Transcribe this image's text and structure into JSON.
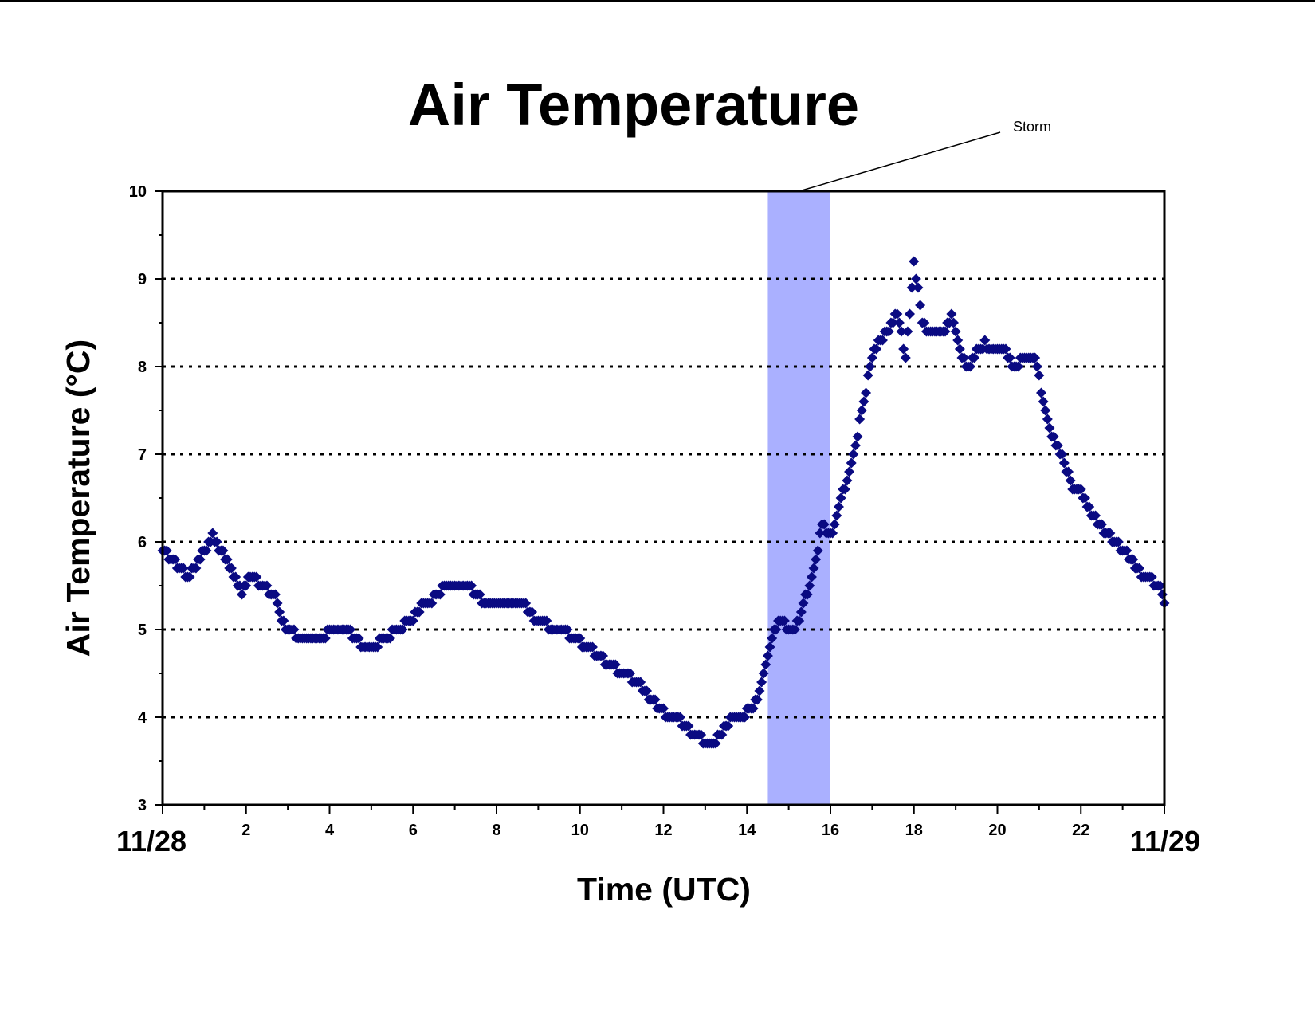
{
  "chart_data": {
    "type": "scatter",
    "title": "Air Temperature",
    "xlabel": "Time (UTC)",
    "ylabel": "Air Temperature (°C)",
    "xlim": [
      0,
      24
    ],
    "ylim": [
      3,
      10
    ],
    "x_ticks": [
      "2",
      "4",
      "6",
      "8",
      "10",
      "12",
      "14",
      "16",
      "18",
      "20",
      "22"
    ],
    "y_ticks": [
      "3",
      "4",
      "5",
      "6",
      "7",
      "8",
      "9",
      "10"
    ],
    "x_tick_values": [
      2,
      4,
      6,
      8,
      10,
      12,
      14,
      16,
      18,
      20,
      22
    ],
    "y_tick_values": [
      3,
      4,
      5,
      6,
      7,
      8,
      9,
      10
    ],
    "date_labels": {
      "start": "11/28",
      "end": "11/29"
    },
    "grid": {
      "horizontal": true,
      "style": "dotted",
      "values": [
        4,
        5,
        6,
        7,
        8,
        9
      ]
    },
    "shaded_region": {
      "label": "Storm",
      "x_range": [
        14.5,
        16.0
      ],
      "color": "#aab0ff"
    },
    "marker_color": "#0a0a82",
    "marker": "diamond",
    "series": [
      {
        "points": [
          [
            0.0,
            5.9
          ],
          [
            0.2,
            5.8
          ],
          [
            0.4,
            5.7
          ],
          [
            0.6,
            5.6
          ],
          [
            0.8,
            5.7
          ],
          [
            1.0,
            5.9
          ],
          [
            1.2,
            6.05
          ],
          [
            1.4,
            5.9
          ],
          [
            1.6,
            5.7
          ],
          [
            1.9,
            5.4
          ],
          [
            2.1,
            5.6
          ],
          [
            2.4,
            5.5
          ],
          [
            2.7,
            5.35
          ],
          [
            2.9,
            5.05
          ],
          [
            3.3,
            4.9
          ],
          [
            3.8,
            4.9
          ],
          [
            4.1,
            5.0
          ],
          [
            4.5,
            4.95
          ],
          [
            4.8,
            4.8
          ],
          [
            5.2,
            4.85
          ],
          [
            5.5,
            4.95
          ],
          [
            5.9,
            5.1
          ],
          [
            6.2,
            5.25
          ],
          [
            6.5,
            5.35
          ],
          [
            6.8,
            5.5
          ],
          [
            7.1,
            5.5
          ],
          [
            7.4,
            5.45
          ],
          [
            7.7,
            5.3
          ],
          [
            8.0,
            5.25
          ],
          [
            8.4,
            5.3
          ],
          [
            8.7,
            5.25
          ],
          [
            9.0,
            5.1
          ],
          [
            9.4,
            5.0
          ],
          [
            9.7,
            4.95
          ],
          [
            10.0,
            4.85
          ],
          [
            10.3,
            4.75
          ],
          [
            10.7,
            4.6
          ],
          [
            11.0,
            4.5
          ],
          [
            11.4,
            4.4
          ],
          [
            11.7,
            4.2
          ],
          [
            12.0,
            4.05
          ],
          [
            12.3,
            4.0
          ],
          [
            12.6,
            3.85
          ],
          [
            12.9,
            3.75
          ],
          [
            13.1,
            3.7
          ],
          [
            13.3,
            3.75
          ],
          [
            13.6,
            3.95
          ],
          [
            13.9,
            4.0
          ],
          [
            14.2,
            4.15
          ],
          [
            14.4,
            4.5
          ],
          [
            14.6,
            4.9
          ],
          [
            14.8,
            5.1
          ],
          [
            15.0,
            5.0
          ],
          [
            15.2,
            5.05
          ],
          [
            15.4,
            5.35
          ],
          [
            15.6,
            5.65
          ],
          [
            15.8,
            6.2
          ],
          [
            16.0,
            6.05
          ],
          [
            16.2,
            6.4
          ],
          [
            16.4,
            6.7
          ],
          [
            16.6,
            7.1
          ],
          [
            16.8,
            7.6
          ],
          [
            17.0,
            8.1
          ],
          [
            17.2,
            8.3
          ],
          [
            17.4,
            8.4
          ],
          [
            17.6,
            8.6
          ],
          [
            17.8,
            8.1
          ],
          [
            18.0,
            9.2
          ],
          [
            18.2,
            8.5
          ],
          [
            18.4,
            8.35
          ],
          [
            18.7,
            8.4
          ],
          [
            18.9,
            8.55
          ],
          [
            19.1,
            8.2
          ],
          [
            19.3,
            7.95
          ],
          [
            19.5,
            8.2
          ],
          [
            19.7,
            8.25
          ],
          [
            19.9,
            8.2
          ],
          [
            20.2,
            8.15
          ],
          [
            20.4,
            7.95
          ],
          [
            20.6,
            8.1
          ],
          [
            20.9,
            8.1
          ],
          [
            21.1,
            7.6
          ],
          [
            21.3,
            7.2
          ],
          [
            21.6,
            6.9
          ],
          [
            21.8,
            6.6
          ],
          [
            22.0,
            6.55
          ],
          [
            22.3,
            6.3
          ],
          [
            22.6,
            6.1
          ],
          [
            22.9,
            5.95
          ],
          [
            23.2,
            5.8
          ],
          [
            23.5,
            5.6
          ],
          [
            23.7,
            5.55
          ],
          [
            23.9,
            5.5
          ],
          [
            24.0,
            5.3
          ]
        ]
      }
    ]
  },
  "labels": {
    "title": "Air Temperature",
    "xlabel": "Time (UTC)",
    "ylabel": "Air Temperature (°C)",
    "start_date": "11/28",
    "end_date": "11/29",
    "storm": "Storm"
  }
}
